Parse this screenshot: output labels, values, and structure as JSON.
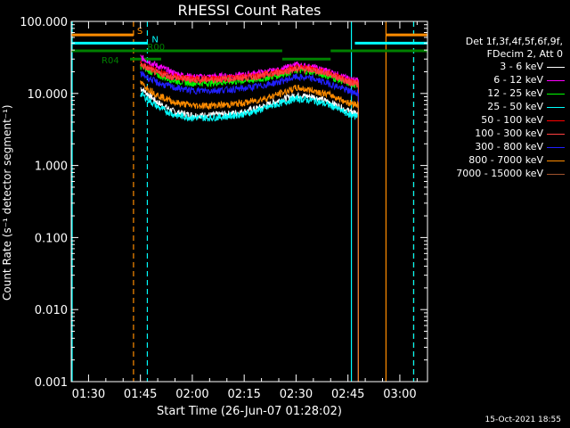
{
  "chart_data": {
    "type": "line",
    "title": "RHESSI Count Rates",
    "xlabel": "Start Time (26-Jun-07 01:28:02)",
    "ylabel": "Count Rate (s⁻¹ detector segment⁻¹)",
    "yscale": "log",
    "ylim": [
      0.001,
      100
    ],
    "xlim": [
      "01:25",
      "03:08"
    ],
    "xtick_labels": [
      "01:30",
      "01:45",
      "02:00",
      "02:15",
      "02:30",
      "02:45",
      "03:00"
    ],
    "ytick_labels": [
      "100.000",
      "10.000",
      "1.000",
      "0.100",
      "0.010",
      "0.001"
    ],
    "legend_title": [
      "Det 1f,3f,4f,5f,6f,9f,",
      "FDecim 2, Att 0"
    ],
    "legend_position": "right",
    "series": [
      {
        "name": "3 - 6 keV",
        "color": "#ffffff",
        "x": [
          "01:45",
          "01:50",
          "01:55",
          "02:00",
          "02:05",
          "02:10",
          "02:15",
          "02:20",
          "02:25",
          "02:30",
          "02:35",
          "02:40",
          "02:45",
          "02:48"
        ],
        "values": [
          12,
          7.5,
          5.5,
          5.0,
          5.0,
          5.2,
          5.6,
          6.5,
          8.0,
          9.5,
          9.0,
          7.5,
          5.8,
          5.0
        ]
      },
      {
        "name": "6 - 12 keV",
        "color": "#ff00ff",
        "x": [
          "01:45",
          "01:50",
          "01:55",
          "02:00",
          "02:05",
          "02:10",
          "02:15",
          "02:20",
          "02:25",
          "02:30",
          "02:35",
          "02:40",
          "02:45",
          "02:48"
        ],
        "values": [
          32,
          24,
          19,
          17,
          17,
          17.5,
          18,
          19.5,
          21,
          25,
          23,
          20,
          16,
          15
        ]
      },
      {
        "name": "12 - 25 keV",
        "color": "#00ff00",
        "x": [
          "01:45",
          "01:50",
          "01:55",
          "02:00",
          "02:05",
          "02:10",
          "02:15",
          "02:20",
          "02:25",
          "02:30",
          "02:35",
          "02:40",
          "02:45",
          "02:48"
        ],
        "values": [
          24,
          18,
          15,
          14,
          14,
          14.5,
          15,
          16,
          18,
          21,
          20,
          17,
          14,
          13
        ]
      },
      {
        "name": "25 - 50 keV",
        "color": "#00ffff",
        "x": [
          "01:45",
          "01:50",
          "01:55",
          "02:00",
          "02:05",
          "02:10",
          "02:15",
          "02:20",
          "02:25",
          "02:30",
          "02:35",
          "02:40",
          "02:45",
          "02:48"
        ],
        "values": [
          10,
          6.5,
          5.0,
          4.6,
          4.6,
          4.8,
          5.2,
          6.0,
          7.2,
          8.5,
          8.0,
          6.8,
          5.2,
          4.8
        ]
      },
      {
        "name": "50 - 100 keV",
        "color": "#ff0000",
        "x": [
          "01:45",
          "01:50",
          "01:55",
          "02:00",
          "02:05",
          "02:10",
          "02:15",
          "02:20",
          "02:25",
          "02:30",
          "02:35",
          "02:40",
          "02:45",
          "02:48"
        ],
        "values": [
          26,
          20,
          17,
          16,
          16,
          16.5,
          17,
          18,
          20,
          23,
          22,
          19,
          15,
          14
        ]
      },
      {
        "name": "100 - 300 keV",
        "color": "#ff4040",
        "x": [
          "01:45",
          "01:50",
          "01:55",
          "02:00",
          "02:05",
          "02:10",
          "02:15",
          "02:20",
          "02:25",
          "02:30",
          "02:35",
          "02:40",
          "02:45",
          "02:48"
        ],
        "values": [
          25,
          19,
          16.5,
          15.5,
          15.5,
          16,
          16.5,
          17.5,
          19.5,
          22,
          21,
          18.5,
          14.5,
          13.5
        ]
      },
      {
        "name": "300 - 800 keV",
        "color": "#2020ff",
        "x": [
          "01:45",
          "01:50",
          "01:55",
          "02:00",
          "02:05",
          "02:10",
          "02:15",
          "02:20",
          "02:25",
          "02:30",
          "02:35",
          "02:40",
          "02:45",
          "02:48"
        ],
        "values": [
          19,
          14,
          12,
          11,
          11,
          11.3,
          11.8,
          12.8,
          14.5,
          17,
          16,
          13.5,
          11,
          10
        ]
      },
      {
        "name": "800 - 7000 keV",
        "color": "#ff8c00",
        "x": [
          "01:45",
          "01:50",
          "01:55",
          "02:00",
          "02:05",
          "02:10",
          "02:15",
          "02:20",
          "02:25",
          "02:30",
          "02:35",
          "02:40",
          "02:45",
          "02:48"
        ],
        "values": [
          14,
          9.5,
          7.5,
          6.8,
          6.8,
          7.0,
          7.4,
          8.3,
          9.8,
          12,
          11,
          9.5,
          7.5,
          7.0
        ]
      },
      {
        "name": "7000 - 15000 keV",
        "color": "#a0522d",
        "x": [],
        "values": []
      }
    ],
    "flags": [
      {
        "label": "S",
        "color": "#ff8c00",
        "y": 65,
        "segments": [
          [
            "01:25",
            "01:43"
          ],
          [
            "02:56",
            "03:08"
          ]
        ]
      },
      {
        "label": "N",
        "color": "#00ffff",
        "y": 50,
        "segments": [
          [
            "01:25",
            "01:47"
          ],
          [
            "02:47",
            "03:08"
          ]
        ]
      },
      {
        "label": "R04",
        "color": "#008000",
        "y": 30,
        "segments": [
          [
            "01:42",
            "01:51"
          ]
        ]
      },
      {
        "label": "R00",
        "color": "#008000",
        "y": 39,
        "segments": [
          [
            "01:25",
            "02:26"
          ],
          [
            "02:40",
            "03:08"
          ]
        ]
      },
      {
        "label": "",
        "color": "#008000",
        "y": 30,
        "segments": [
          [
            "02:26",
            "02:40"
          ]
        ]
      }
    ],
    "vlines": [
      {
        "x": "01:43",
        "color": "#ff8c00",
        "style": "dashed"
      },
      {
        "x": "01:47",
        "color": "#00ffff",
        "style": "dashed"
      },
      {
        "x": "02:46",
        "color": "#00ffff",
        "style": "solid"
      },
      {
        "x": "02:56",
        "color": "#ff8c00",
        "style": "solid"
      },
      {
        "x": "03:04",
        "color": "#ff8c00",
        "style": "dashed"
      },
      {
        "x": "03:04",
        "color": "#00ffff",
        "style": "dashed"
      }
    ]
  },
  "timestamp": "15-Oct-2021 18:55"
}
